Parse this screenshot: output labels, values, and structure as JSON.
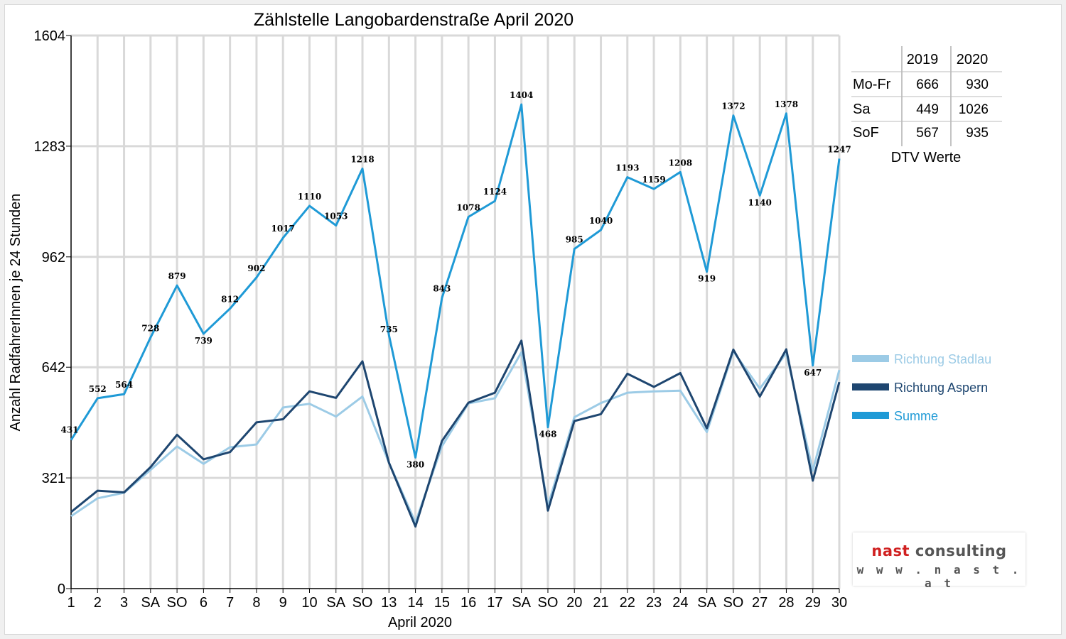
{
  "chart_data": {
    "type": "line",
    "title": "Zählstelle Langobardenstraße April 2020",
    "xlabel": "April 2020",
    "ylabel": "Anzahl RadfahrerInnen je 24 Stunden",
    "ylim": [
      0,
      1604
    ],
    "yticks": [
      "0",
      "321",
      "642",
      "962",
      "1283",
      "1604"
    ],
    "categories": [
      "1",
      "2",
      "3",
      "SA",
      "SO",
      "6",
      "7",
      "8",
      "9",
      "10",
      "SA",
      "SO",
      "13",
      "14",
      "15",
      "16",
      "17",
      "SA",
      "SO",
      "20",
      "21",
      "22",
      "23",
      "24",
      "SA",
      "SO",
      "27",
      "28",
      "29",
      "30"
    ],
    "red_categories": [
      4,
      11,
      12,
      18,
      25
    ],
    "series": [
      {
        "name": "Richtung Stadlau",
        "color": "#9ccbe6",
        "values": [
          210,
          262,
          278,
          344,
          412,
          362,
          410,
          418,
          525,
          536,
          499,
          557,
          365,
          192,
          413,
          537,
          552,
          685,
          240,
          497,
          538,
          568,
          572,
          574,
          454,
          688,
          580,
          683,
          342,
          634
        ]
      },
      {
        "name": "Richtung Aspern",
        "color": "#1e4670",
        "values": [
          222,
          284,
          279,
          352,
          446,
          375,
          396,
          482,
          491,
          572,
          553,
          659,
          365,
          180,
          428,
          539,
          568,
          719,
          226,
          486,
          506,
          623,
          585,
          625,
          465,
          693,
          557,
          694,
          313,
          599
        ]
      },
      {
        "name": "Summe",
        "color": "#1f9ad6",
        "values": [
          431,
          552,
          564,
          728,
          879,
          739,
          812,
          902,
          1017,
          1110,
          1053,
          1218,
          735,
          380,
          843,
          1078,
          1124,
          1404,
          468,
          985,
          1040,
          1193,
          1159,
          1208,
          919,
          1372,
          1140,
          1378,
          647,
          1247
        ]
      }
    ],
    "data_labels": [
      "431",
      "552",
      "564",
      "728",
      "879",
      "739",
      "812",
      "902",
      "1017",
      "1110",
      "1053",
      "1218",
      "735",
      "380",
      "843",
      "1078",
      "1124",
      "1404",
      "468",
      "985",
      "1040",
      "1193",
      "1159",
      "1208",
      "919",
      "1372",
      "1140",
      "1378",
      "647",
      "1247"
    ],
    "grid": true,
    "legend_position": "right"
  },
  "dtv_table": {
    "headers": [
      "",
      "2019",
      "2020"
    ],
    "rows": [
      [
        "Mo-Fr",
        "666",
        "930"
      ],
      [
        "Sa",
        "449",
        "1026"
      ],
      [
        "SoF",
        "567",
        "935"
      ]
    ],
    "caption": "DTV Werte"
  },
  "logo": {
    "brand": "nast",
    "rest": " consulting",
    "url": "w w w . n a s t . a t"
  },
  "colors": {
    "weekend_red": "#e00000"
  }
}
